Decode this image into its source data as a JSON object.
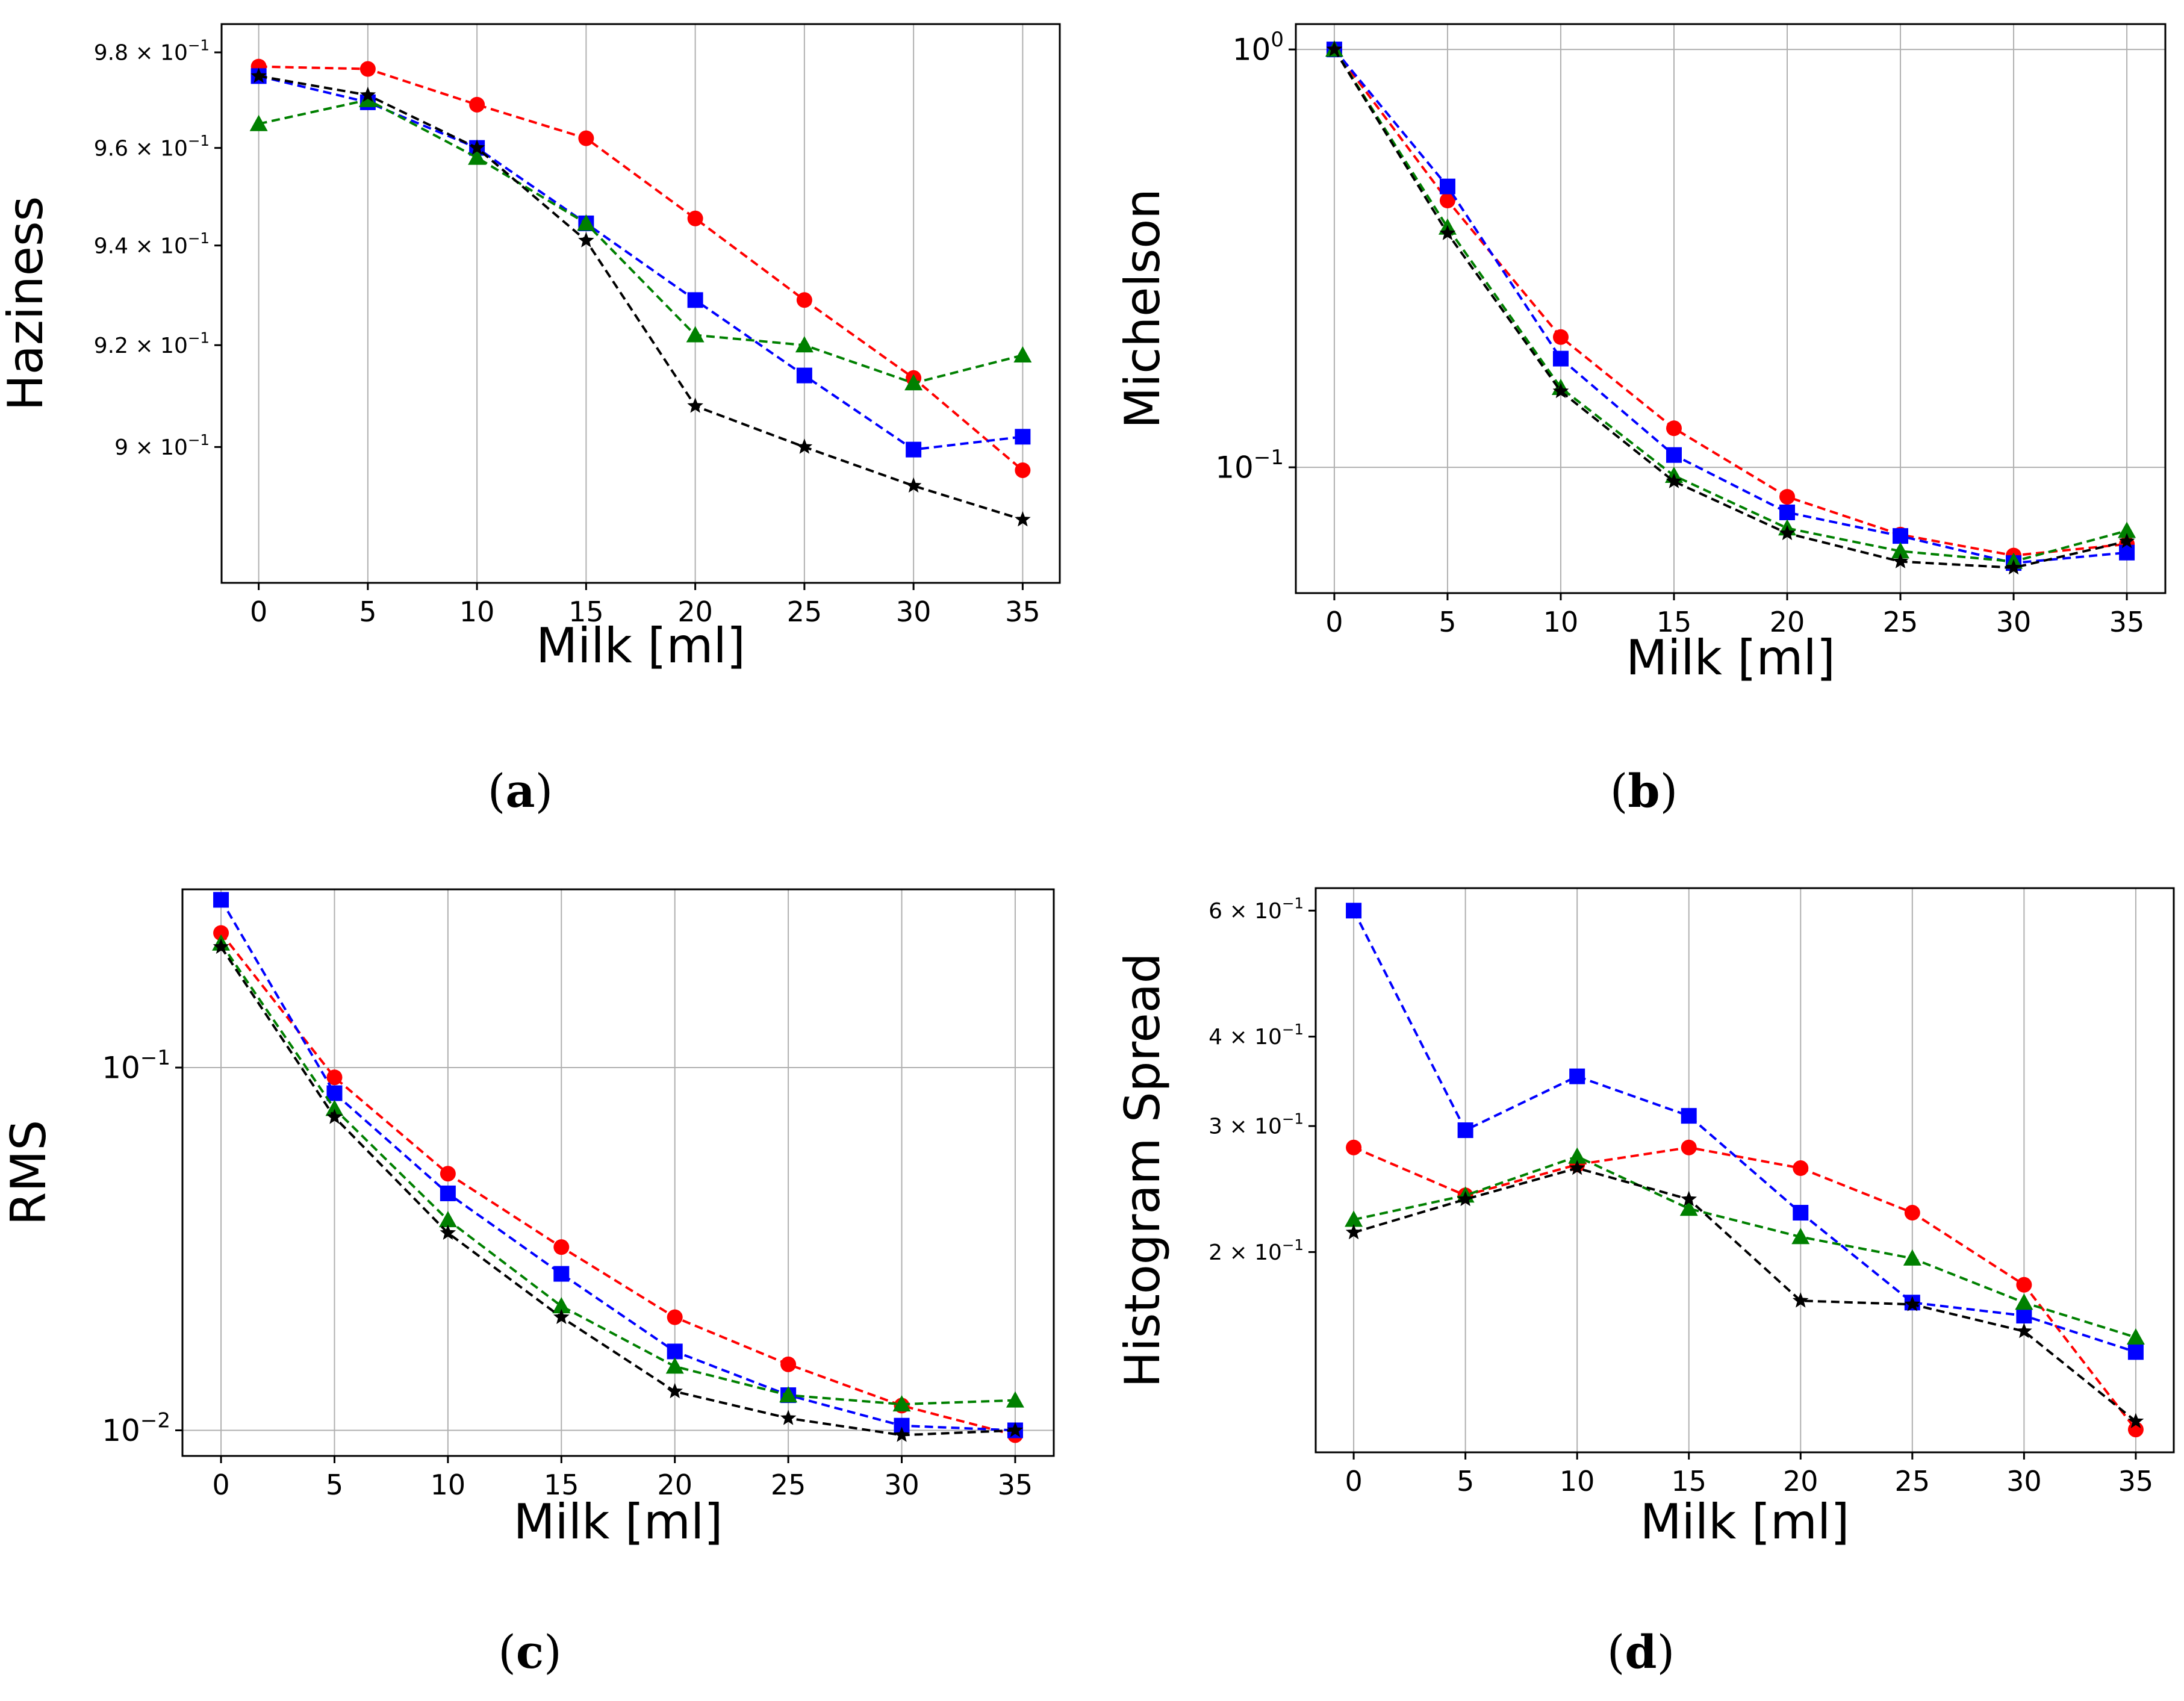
{
  "chart_data": [
    {
      "id": "a",
      "type": "line",
      "panel_label": "(a)",
      "title": "",
      "xlabel": "Milk [ml]",
      "ylabel": "Haziness",
      "yscale": "log",
      "grid": "x",
      "xlim": [
        -1.7,
        36.7
      ],
      "ylim": [
        0.874,
        0.986
      ],
      "x": [
        0,
        5,
        10,
        15,
        20,
        25,
        30,
        35
      ],
      "xticks": [
        0,
        5,
        10,
        15,
        20,
        25,
        30,
        35
      ],
      "xtick_labels": [
        "0",
        "5",
        "10",
        "15",
        "20",
        "25",
        "30",
        "35"
      ],
      "yticks": [
        {
          "value": 0.98,
          "base": "9.8",
          "sup": "−1"
        },
        {
          "value": 0.96,
          "base": "9.6",
          "sup": "−1"
        },
        {
          "value": 0.94,
          "base": "9.4",
          "sup": "−1"
        },
        {
          "value": 0.92,
          "base": "9.2",
          "sup": "−1"
        },
        {
          "value": 0.9,
          "base": "9",
          "sup": "−1"
        }
      ],
      "series": [
        {
          "name": "red",
          "color": "#ff0000",
          "marker": "circle",
          "values": [
            0.977,
            0.9765,
            0.969,
            0.962,
            0.9455,
            0.929,
            0.9135,
            0.8955
          ]
        },
        {
          "name": "blue",
          "color": "#0000ff",
          "marker": "square",
          "values": [
            0.975,
            0.9695,
            0.96,
            0.9445,
            0.929,
            0.914,
            0.8995,
            0.902
          ]
        },
        {
          "name": "green",
          "color": "#008000",
          "marker": "triangle",
          "values": [
            0.965,
            0.97,
            0.958,
            0.9445,
            0.922,
            0.92,
            0.9125,
            0.918
          ]
        },
        {
          "name": "black",
          "color": "#000000",
          "marker": "star",
          "values": [
            0.975,
            0.971,
            0.96,
            0.941,
            0.908,
            0.9,
            0.8925,
            0.886
          ]
        }
      ]
    },
    {
      "id": "b",
      "type": "line",
      "panel_label": "(b)",
      "title": "",
      "xlabel": "Milk [ml]",
      "ylabel": "Michelson",
      "yscale": "log",
      "grid": "both",
      "xlim": [
        -1.7,
        36.7
      ],
      "ylim": [
        0.05,
        1.15
      ],
      "x": [
        0,
        5,
        10,
        15,
        20,
        25,
        30,
        35
      ],
      "xticks": [
        0,
        5,
        10,
        15,
        20,
        25,
        30,
        35
      ],
      "xtick_labels": [
        "0",
        "5",
        "10",
        "15",
        "20",
        "25",
        "30",
        "35"
      ],
      "yticks": [
        {
          "value": 1.0,
          "base": "10",
          "sup": "0"
        },
        {
          "value": 0.1,
          "base": "10",
          "sup": "−1"
        }
      ],
      "series": [
        {
          "name": "red",
          "color": "#ff0000",
          "marker": "circle",
          "values": [
            1.0,
            0.435,
            0.205,
            0.124,
            0.085,
            0.069,
            0.0615,
            0.0655
          ]
        },
        {
          "name": "blue",
          "color": "#0000ff",
          "marker": "square",
          "values": [
            1.0,
            0.47,
            0.182,
            0.107,
            0.078,
            0.0685,
            0.059,
            0.0625
          ]
        },
        {
          "name": "green",
          "color": "#008000",
          "marker": "triangle",
          "values": [
            1.0,
            0.375,
            0.155,
            0.0955,
            0.0715,
            0.063,
            0.0595,
            0.0705
          ]
        },
        {
          "name": "black",
          "color": "#000000",
          "marker": "star",
          "values": [
            1.0,
            0.363,
            0.152,
            0.0925,
            0.0695,
            0.0595,
            0.0575,
            0.0665
          ]
        }
      ]
    },
    {
      "id": "c",
      "type": "line",
      "panel_label": "(c)",
      "title": "",
      "xlabel": "Milk [ml]",
      "ylabel": "RMS",
      "yscale": "log",
      "grid": "both",
      "xlim": [
        -1.7,
        36.7
      ],
      "ylim": [
        0.0085,
        0.31
      ],
      "x": [
        0,
        5,
        10,
        15,
        20,
        25,
        30,
        35
      ],
      "xticks": [
        0,
        5,
        10,
        15,
        20,
        25,
        30,
        35
      ],
      "xtick_labels": [
        "0",
        "5",
        "10",
        "15",
        "20",
        "25",
        "30",
        "35"
      ],
      "yticks": [
        {
          "value": 0.1,
          "base": "10",
          "sup": "−1"
        },
        {
          "value": 0.01,
          "base": "10",
          "sup": "−2"
        }
      ],
      "series": [
        {
          "name": "red",
          "color": "#ff0000",
          "marker": "circle",
          "values": [
            0.235,
            0.094,
            0.051,
            0.032,
            0.0205,
            0.0152,
            0.0117,
            0.0097
          ]
        },
        {
          "name": "blue",
          "color": "#0000ff",
          "marker": "square",
          "values": [
            0.29,
            0.085,
            0.045,
            0.027,
            0.0165,
            0.0125,
            0.0103,
            0.01
          ]
        },
        {
          "name": "green",
          "color": "#008000",
          "marker": "triangle",
          "values": [
            0.22,
            0.077,
            0.038,
            0.022,
            0.015,
            0.0125,
            0.0118,
            0.0121
          ]
        },
        {
          "name": "black",
          "color": "#000000",
          "marker": "star",
          "values": [
            0.215,
            0.073,
            0.035,
            0.0205,
            0.0128,
            0.0108,
            0.0097,
            0.01
          ]
        }
      ]
    },
    {
      "id": "d",
      "type": "line",
      "panel_label": "(d)",
      "title": "",
      "xlabel": "Milk [ml]",
      "ylabel": "Histogram Spread",
      "yscale": "log",
      "grid": "x",
      "xlim": [
        -1.7,
        36.7
      ],
      "ylim": [
        0.105,
        0.645
      ],
      "x": [
        0,
        5,
        10,
        15,
        20,
        25,
        30,
        35
      ],
      "xticks": [
        0,
        5,
        10,
        15,
        20,
        25,
        30,
        35
      ],
      "xtick_labels": [
        "0",
        "5",
        "10",
        "15",
        "20",
        "25",
        "30",
        "35"
      ],
      "yticks": [
        {
          "value": 0.6,
          "base": "6",
          "sup": "−1"
        },
        {
          "value": 0.4,
          "base": "4",
          "sup": "−1"
        },
        {
          "value": 0.3,
          "base": "3",
          "sup": "−1"
        },
        {
          "value": 0.2,
          "base": "2",
          "sup": "−1"
        }
      ],
      "series": [
        {
          "name": "red",
          "color": "#ff0000",
          "marker": "circle",
          "values": [
            0.28,
            0.24,
            0.265,
            0.28,
            0.262,
            0.227,
            0.18,
            0.113
          ]
        },
        {
          "name": "blue",
          "color": "#0000ff",
          "marker": "square",
          "values": [
            0.6,
            0.296,
            0.352,
            0.31,
            0.227,
            0.17,
            0.163,
            0.145
          ]
        },
        {
          "name": "green",
          "color": "#008000",
          "marker": "triangle",
          "values": [
            0.222,
            0.24,
            0.272,
            0.23,
            0.21,
            0.196,
            0.17,
            0.152
          ]
        },
        {
          "name": "black",
          "color": "#000000",
          "marker": "star",
          "values": [
            0.213,
            0.237,
            0.262,
            0.237,
            0.171,
            0.169,
            0.155,
            0.116
          ]
        }
      ]
    }
  ]
}
